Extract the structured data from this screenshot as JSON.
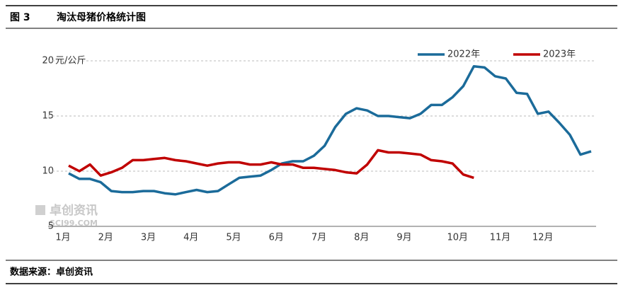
{
  "header": {
    "figure": "图 3",
    "title": "淘汰母猪价格统计图"
  },
  "footer": {
    "source": "数据来源：卓创资讯"
  },
  "watermark": {
    "name": "卓创资讯",
    "site": "SCI99.COM"
  },
  "chart_data": {
    "type": "line",
    "y_unit": "元/公斤",
    "categories": [
      "1月",
      null,
      null,
      null,
      "2月",
      null,
      null,
      null,
      "3月",
      null,
      null,
      null,
      "4月",
      null,
      null,
      null,
      "5月",
      null,
      null,
      null,
      "6月",
      null,
      null,
      null,
      "7月",
      null,
      null,
      null,
      "8月",
      null,
      null,
      null,
      "9月",
      null,
      null,
      null,
      null,
      "10月",
      null,
      null,
      null,
      "11月",
      null,
      null,
      null,
      "12月",
      null,
      null,
      null,
      null
    ],
    "series": [
      {
        "name": "2022年",
        "color": "#1b6b9a",
        "values": [
          9.8,
          9.3,
          9.3,
          9.0,
          8.2,
          8.1,
          8.1,
          8.2,
          8.2,
          8.0,
          7.9,
          8.1,
          8.3,
          8.1,
          8.2,
          8.8,
          9.4,
          9.5,
          9.6,
          10.1,
          10.7,
          10.9,
          10.9,
          11.4,
          12.3,
          14.0,
          15.2,
          15.7,
          15.5,
          15.0,
          15.0,
          14.9,
          14.8,
          15.2,
          16.0,
          16.0,
          16.7,
          17.7,
          19.5,
          19.4,
          18.6,
          18.4,
          17.1,
          17.0,
          15.2,
          15.4,
          14.4,
          13.3,
          11.5,
          11.8
        ]
      },
      {
        "name": "2023年",
        "color": "#c00000",
        "values": [
          10.5,
          10.0,
          10.6,
          9.6,
          9.9,
          10.3,
          11.0,
          11.0,
          11.1,
          11.2,
          11.0,
          10.9,
          10.7,
          10.5,
          10.7,
          10.8,
          10.8,
          10.6,
          10.6,
          10.8,
          10.6,
          10.6,
          10.3,
          10.3,
          10.2,
          10.1,
          9.9,
          9.8,
          10.6,
          11.9,
          11.7,
          11.7,
          11.6,
          11.5,
          11.0,
          10.9,
          10.7,
          9.7,
          9.4,
          null,
          null,
          null,
          null,
          null,
          null,
          null,
          null,
          null,
          null,
          null
        ]
      }
    ],
    "ylim": [
      5,
      20
    ],
    "yticks": [
      5,
      10,
      15,
      20
    ],
    "grid": true,
    "legend": "top-right"
  }
}
